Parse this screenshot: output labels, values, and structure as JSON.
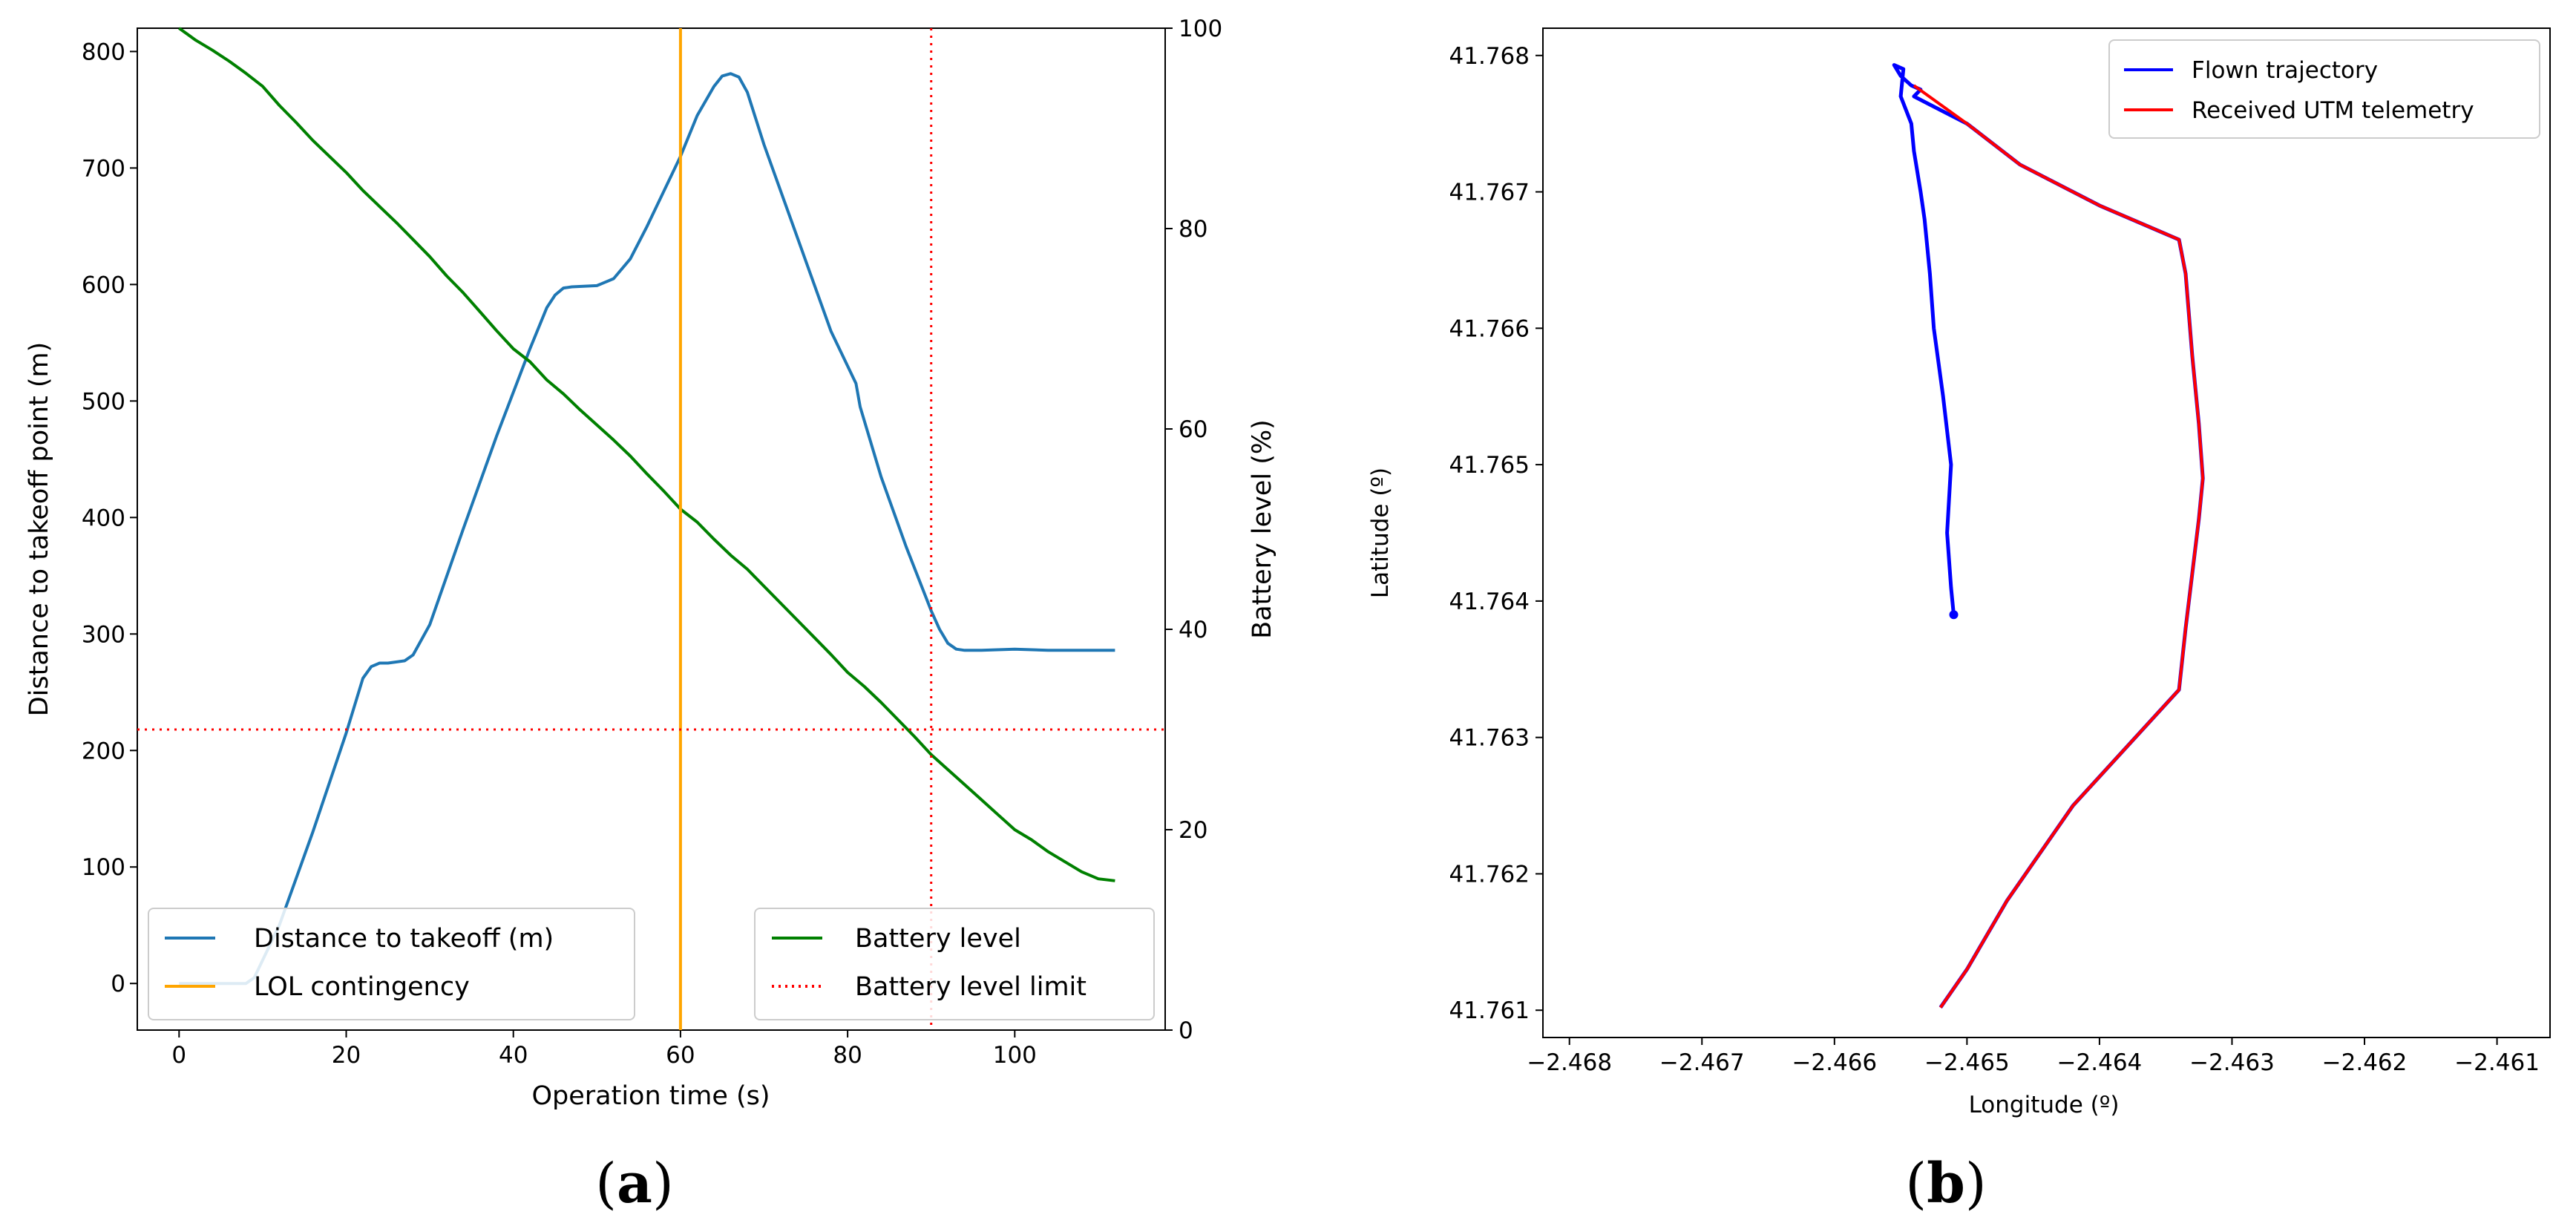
{
  "chart_data": [
    {
      "id": "a",
      "type": "line",
      "caption_open": "(",
      "caption_letter": "a",
      "caption_close": ")",
      "xlabel": "Operation time (s)",
      "ylabel_left": "Distance to takeoff point (m)",
      "ylabel_right": "Battery level (%)",
      "xlim": [
        -5,
        118
      ],
      "ylim_left": [
        -40,
        820
      ],
      "ylim_right": [
        0,
        100
      ],
      "x_ticks": [
        0,
        20,
        40,
        60,
        80,
        100
      ],
      "x_tick_labels": [
        "0",
        "20",
        "40",
        "60",
        "80",
        "100"
      ],
      "y_left_ticks": [
        0,
        100,
        200,
        300,
        400,
        500,
        600,
        700,
        800
      ],
      "y_left_tick_labels": [
        "0",
        "100",
        "200",
        "300",
        "400",
        "500",
        "600",
        "700",
        "800"
      ],
      "y_right_ticks": [
        0,
        20,
        40,
        60,
        80,
        100
      ],
      "y_right_tick_labels": [
        "0",
        "20",
        "40",
        "60",
        "80",
        "100"
      ],
      "series": [
        {
          "name": "Distance to takeoff (m)",
          "axis": "left",
          "color": "#1f77b4",
          "style": "solid",
          "x": [
            0,
            8,
            9,
            12,
            16,
            20,
            22,
            23,
            24,
            25,
            27,
            28,
            30,
            34,
            38,
            42,
            44,
            45,
            46,
            47,
            50,
            51,
            52,
            54,
            56,
            58,
            60,
            62,
            64,
            65,
            66,
            67,
            68,
            70,
            74,
            78,
            81,
            81.5,
            84,
            87,
            90,
            91,
            92,
            93,
            94,
            96,
            100,
            104,
            108,
            110,
            112
          ],
          "values": [
            0,
            0,
            5,
            50,
            130,
            215,
            262,
            272,
            275,
            275,
            277,
            282,
            308,
            390,
            470,
            545,
            580,
            591,
            597,
            598,
            599,
            602,
            605,
            622,
            650,
            680,
            710,
            745,
            770,
            779,
            781,
            778,
            765,
            720,
            640,
            560,
            515,
            495,
            435,
            375,
            320,
            304,
            292,
            287,
            286,
            286,
            287,
            286,
            286,
            286,
            286
          ]
        },
        {
          "name": "Battery level",
          "axis": "right",
          "color": "#008000",
          "style": "solid",
          "x": [
            0,
            2,
            4,
            6,
            8,
            10,
            12,
            14,
            16,
            18,
            20,
            22,
            24,
            26,
            28,
            30,
            32,
            34,
            36,
            38,
            40,
            42,
            44,
            46,
            48,
            50,
            52,
            54,
            56,
            58,
            60,
            62,
            64,
            66,
            68,
            70,
            72,
            74,
            76,
            78,
            80,
            82,
            84,
            86,
            88,
            90,
            92,
            94,
            96,
            98,
            100,
            102,
            104,
            106,
            108,
            110,
            112
          ],
          "values": [
            100,
            98.8,
            97.8,
            96.7,
            95.5,
            94.2,
            92.3,
            90.6,
            88.8,
            87.2,
            85.6,
            83.8,
            82.2,
            80.6,
            78.9,
            77.2,
            75.3,
            73.6,
            71.7,
            69.8,
            68.0,
            66.7,
            64.9,
            63.5,
            61.9,
            60.4,
            58.9,
            57.3,
            55.5,
            53.8,
            52.0,
            50.7,
            49.0,
            47.4,
            46.0,
            44.3,
            42.6,
            40.9,
            39.2,
            37.5,
            35.7,
            34.3,
            32.7,
            31.0,
            29.3,
            27.5,
            26.0,
            24.5,
            23.0,
            21.5,
            20.0,
            19.0,
            17.8,
            16.8,
            15.8,
            15.1,
            14.9
          ]
        },
        {
          "name": "LOL contingency",
          "axis": "left",
          "color": "#ffa500",
          "style": "vline",
          "x_value": 60
        },
        {
          "name": "Battery level limit",
          "axis": "right",
          "color": "#ff0000",
          "style": "dotted",
          "y_value": 30,
          "x_value": 90
        }
      ],
      "legend_left": [
        "Distance to takeoff (m)",
        "LOL contingency"
      ],
      "legend_right": [
        "Battery level",
        "Battery level limit"
      ],
      "legend_position": "bottom"
    },
    {
      "id": "b",
      "type": "line",
      "caption_open": "(",
      "caption_letter": "b",
      "caption_close": ")",
      "xlabel": "Longitude (º)",
      "ylabel": "Latitude (º)",
      "xlim": [
        -2.4682,
        -2.4606
      ],
      "ylim": [
        41.7608,
        41.7682
      ],
      "x_ticks": [
        -2.468,
        -2.467,
        -2.466,
        -2.465,
        -2.464,
        -2.463,
        -2.462,
        -2.461
      ],
      "x_tick_labels": [
        "−2.468",
        "−2.467",
        "−2.466",
        "−2.465",
        "−2.464",
        "−2.463",
        "−2.462",
        "−2.461"
      ],
      "y_ticks": [
        41.761,
        41.762,
        41.763,
        41.764,
        41.765,
        41.766,
        41.767,
        41.768
      ],
      "y_tick_labels": [
        "41.761",
        "41.762",
        "41.763",
        "41.764",
        "41.765",
        "41.766",
        "41.767",
        "41.768"
      ],
      "series": [
        {
          "name": "Flown trajectory",
          "color": "#0000ff",
          "x": [
            -2.4651,
            -2.46512,
            -2.46515,
            -2.46512,
            -2.46518,
            -2.46525,
            -2.46528,
            -2.46532,
            -2.46535,
            -2.4654,
            -2.46542,
            -2.4655,
            -2.46548,
            -2.46555,
            -2.4655,
            -2.46542,
            -2.46535,
            -2.4654,
            -2.4653,
            -2.465,
            -2.4646,
            -2.464,
            -2.4634,
            -2.46335,
            -2.4633,
            -2.46325,
            -2.46322,
            -2.46325,
            -2.4633,
            -2.46335,
            -2.4634,
            -2.4642,
            -2.4647,
            -2.465,
            -2.4652
          ],
          "y": [
            41.7639,
            41.7641,
            41.7645,
            41.765,
            41.7655,
            41.766,
            41.7664,
            41.7668,
            41.767,
            41.7673,
            41.7675,
            41.7677,
            41.7679,
            41.76793,
            41.76785,
            41.76778,
            41.76775,
            41.7677,
            41.76765,
            41.7675,
            41.7672,
            41.7669,
            41.76665,
            41.7664,
            41.7658,
            41.7653,
            41.7649,
            41.7646,
            41.7642,
            41.7638,
            41.76335,
            41.7625,
            41.7618,
            41.7613,
            41.76102
          ]
        },
        {
          "name": "Received UTM telemetry",
          "color": "#ff0000",
          "x": [
            -2.4654,
            -2.465,
            -2.4646,
            -2.464,
            -2.4634,
            -2.46335,
            -2.4633,
            -2.46325,
            -2.46322,
            -2.46325,
            -2.4633,
            -2.46335,
            -2.4634,
            -2.4642,
            -2.4647,
            -2.465,
            -2.4652
          ],
          "y": [
            41.76778,
            41.7675,
            41.7672,
            41.7669,
            41.76665,
            41.7664,
            41.7658,
            41.7653,
            41.7649,
            41.7646,
            41.7642,
            41.7638,
            41.76335,
            41.7625,
            41.7618,
            41.7613,
            41.76102
          ]
        }
      ],
      "legend_position": "top-right"
    }
  ]
}
